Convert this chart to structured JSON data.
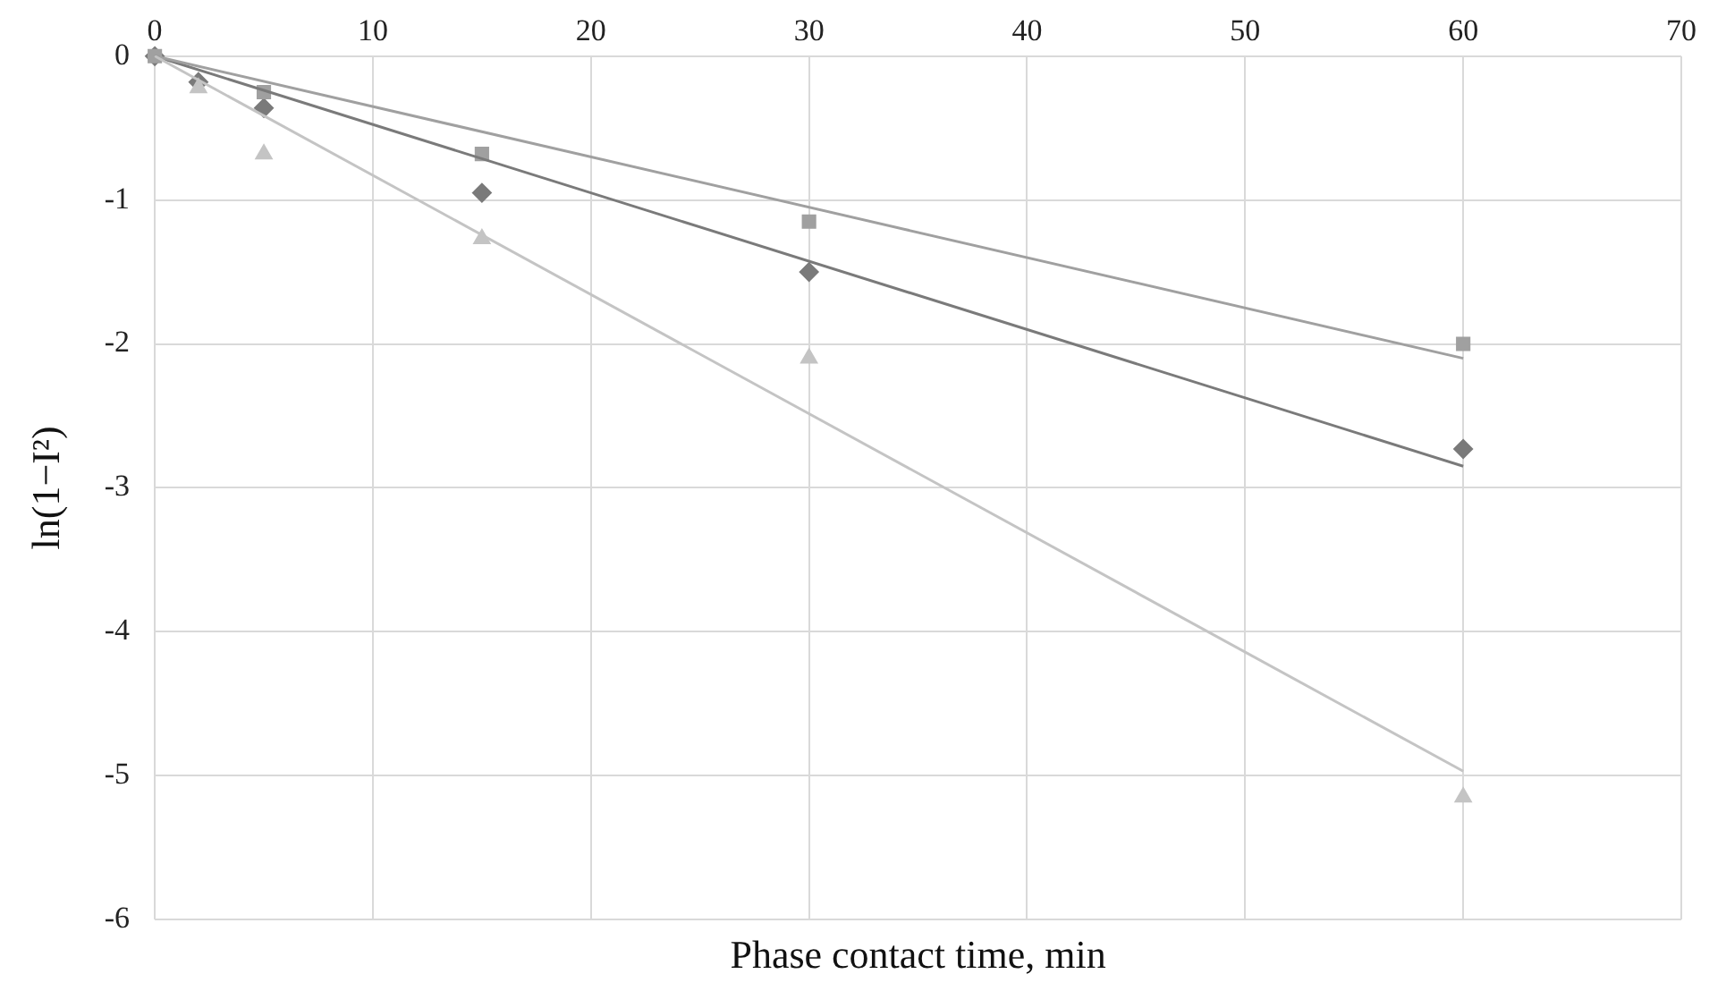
{
  "chart_data": {
    "type": "scatter",
    "xlabel": "Phase contact time, min",
    "ylabel": "ln(1−I²)",
    "xlim": [
      0,
      70
    ],
    "xticks": [
      0,
      10,
      20,
      30,
      40,
      50,
      60,
      70
    ],
    "ylim": [
      -6,
      0
    ],
    "yticks": [
      -6,
      -5,
      -4,
      -3,
      -2,
      -1,
      0
    ],
    "grid": true,
    "legend": false,
    "series": [
      {
        "color": "#7a7a7a",
        "marker": "diamond",
        "x": [
          0,
          2,
          5,
          15,
          30,
          60
        ],
        "values": [
          0,
          -0.18,
          -0.36,
          -0.95,
          -1.5,
          -2.73
        ]
      },
      {
        "color": "#a0a0a0",
        "marker": "square",
        "x": [
          0,
          5,
          15,
          30,
          60
        ],
        "values": [
          0,
          -0.25,
          -0.68,
          -1.15,
          -2.0
        ]
      },
      {
        "color": "#c4c4c4",
        "marker": "triangle",
        "x": [
          2,
          5,
          15,
          30,
          60
        ],
        "values": [
          -0.22,
          -0.68,
          -1.27,
          -2.1,
          -5.15
        ]
      },
      {
        "type": "line",
        "color": "#7a7a7a",
        "marker": "none",
        "x": [
          0,
          60
        ],
        "values": [
          0,
          -2.85
        ]
      },
      {
        "type": "line",
        "color": "#a0a0a0",
        "marker": "none",
        "x": [
          0,
          60
        ],
        "values": [
          0,
          -2.1
        ]
      },
      {
        "type": "line",
        "color": "#c4c4c4",
        "marker": "none",
        "x": [
          0,
          60
        ],
        "values": [
          0,
          -4.97
        ]
      }
    ]
  }
}
